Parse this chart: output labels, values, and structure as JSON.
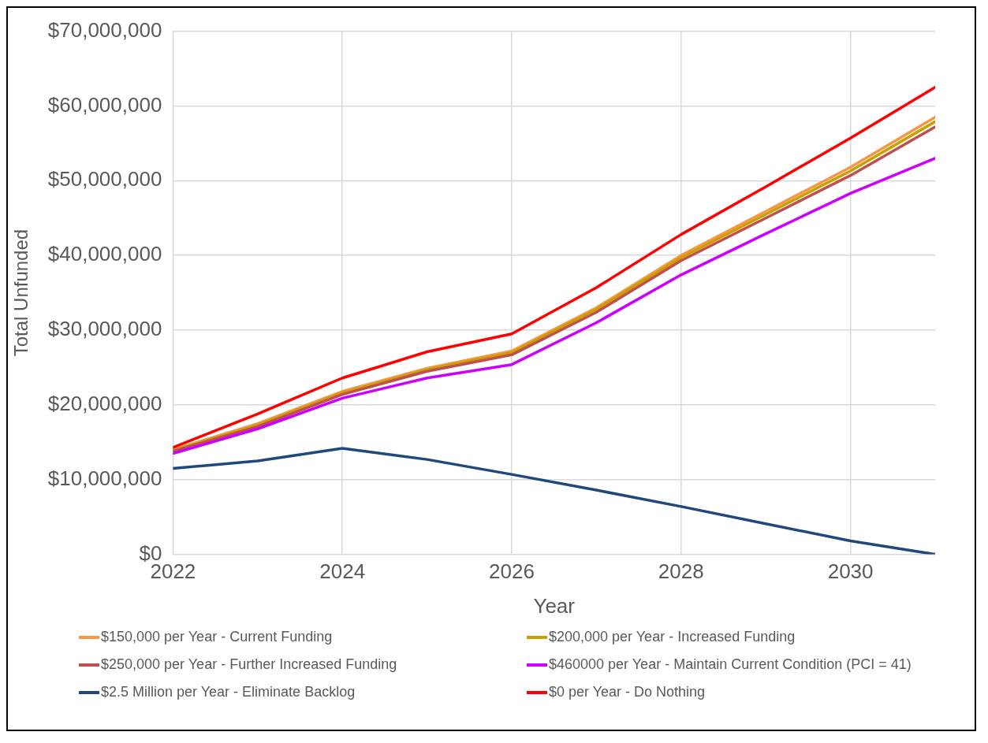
{
  "chart_data": {
    "type": "line",
    "xlabel": "Year",
    "ylabel": "Total Unfunded",
    "x": [
      2022,
      2023,
      2024,
      2025,
      2026,
      2027,
      2028,
      2029,
      2030,
      2031
    ],
    "xlim": [
      2022,
      2031
    ],
    "xticks": [
      2022,
      2024,
      2026,
      2028,
      2030
    ],
    "ylim": [
      0,
      70000000
    ],
    "yticks": [
      {
        "value": 0,
        "label": "$0"
      },
      {
        "value": 10000000,
        "label": "$10,000,000"
      },
      {
        "value": 20000000,
        "label": "$20,000,000"
      },
      {
        "value": 30000000,
        "label": "$30,000,000"
      },
      {
        "value": 40000000,
        "label": "$40,000,000"
      },
      {
        "value": 50000000,
        "label": "$50,000,000"
      },
      {
        "value": 60000000,
        "label": "$60,000,000"
      },
      {
        "value": 70000000,
        "label": "$70,000,000"
      }
    ],
    "grid": true,
    "legend": "bottom",
    "marker": "none",
    "line_style": "solid",
    "series": [
      {
        "name": "$150,000 per Year - Current Funding",
        "color": "#f79646",
        "values": [
          14000000,
          17500000,
          21800000,
          24900000,
          27200000,
          33000000,
          40000000,
          45900000,
          51800000,
          58500000
        ]
      },
      {
        "name": "$200,000 per Year - Increased Funding",
        "color": "#c9a000",
        "values": [
          13900000,
          17300000,
          21600000,
          24700000,
          27000000,
          32800000,
          39700000,
          45500000,
          51300000,
          57900000
        ]
      },
      {
        "name": "$250,000 per Year - Further Increased Funding",
        "color": "#c0504d",
        "values": [
          13800000,
          17100000,
          21400000,
          24500000,
          26700000,
          32400000,
          39300000,
          45000000,
          50700000,
          57200000
        ]
      },
      {
        "name": "$460000 per Year - Maintain Current Condition (PCI = 41)",
        "color": "#cc00ff",
        "values": [
          13500000,
          16800000,
          20900000,
          23600000,
          25400000,
          31000000,
          37400000,
          42900000,
          48300000,
          53000000
        ]
      },
      {
        "name": "$2.5 Million per Year - Eliminate Backlog",
        "color": "#1f497d",
        "values": [
          11500000,
          12500000,
          14200000,
          12700000,
          10700000,
          8600000,
          6400000,
          4100000,
          1800000,
          0
        ]
      },
      {
        "name": "$0 per Year - Do Nothing",
        "color": "#ff0000",
        "values": [
          14300000,
          18800000,
          23600000,
          27100000,
          29500000,
          35700000,
          42800000,
          49200000,
          55700000,
          62500000
        ]
      }
    ]
  }
}
